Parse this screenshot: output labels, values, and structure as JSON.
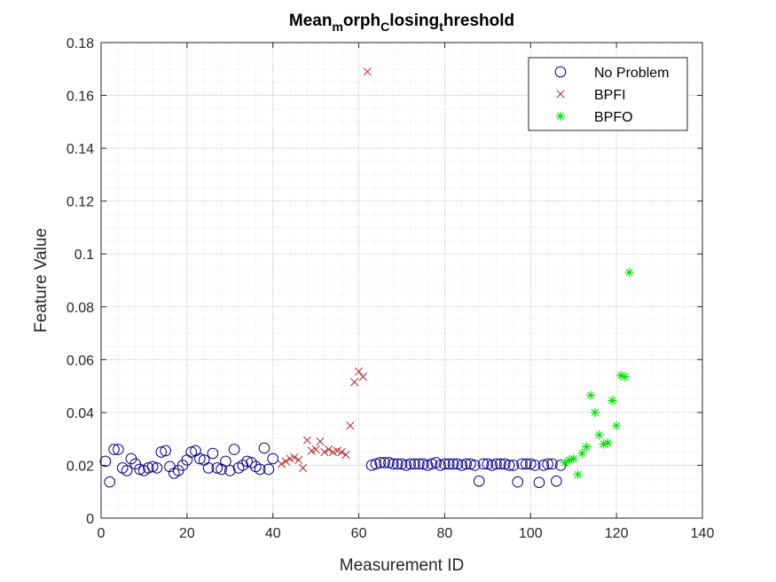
{
  "chart_data": {
    "type": "scatter",
    "title": {
      "parts": [
        {
          "text": "Mean",
          "sub": false
        },
        {
          "text": "m",
          "sub": true
        },
        {
          "text": "orph",
          "sub": false
        },
        {
          "text": "C",
          "sub": true
        },
        {
          "text": "losing",
          "sub": false
        },
        {
          "text": "t",
          "sub": true
        },
        {
          "text": "hreshold",
          "sub": false
        }
      ]
    },
    "xlabel": "Measurement ID",
    "ylabel": "Feature Value",
    "xlim": [
      0,
      140
    ],
    "ylim": [
      0,
      0.18
    ],
    "xticks": [
      0,
      20,
      40,
      60,
      80,
      100,
      120,
      140
    ],
    "yticks": [
      0,
      0.02,
      0.04,
      0.06,
      0.08,
      0.1,
      0.12,
      0.14,
      0.16,
      0.18
    ],
    "ytick_labels": [
      "0",
      "0.02",
      "0.04",
      "0.06",
      "0.08",
      "0.1",
      "0.12",
      "0.14",
      "0.16",
      "0.18"
    ],
    "grid": true,
    "minor_grid": true,
    "legend_position": "top-right",
    "series": [
      {
        "name": "No Problem",
        "marker": "circle",
        "color": "#00008b",
        "x": [
          1,
          2,
          3,
          4,
          5,
          6,
          7,
          8,
          9,
          10,
          11,
          12,
          13,
          14,
          15,
          16,
          17,
          18,
          19,
          20,
          21,
          22,
          23,
          24,
          25,
          26,
          27,
          28,
          29,
          30,
          31,
          32,
          33,
          34,
          35,
          36,
          37,
          38,
          39,
          40,
          63,
          64,
          65,
          66,
          67,
          68,
          69,
          70,
          71,
          72,
          73,
          74,
          75,
          76,
          77,
          78,
          79,
          80,
          81,
          82,
          83,
          84,
          85,
          86,
          87,
          88,
          89,
          90,
          91,
          92,
          93,
          94,
          95,
          96,
          97,
          98,
          99,
          100,
          101,
          102,
          103,
          104,
          105,
          106,
          107
        ],
        "y": [
          0.0215,
          0.0137,
          0.026,
          0.026,
          0.019,
          0.018,
          0.0225,
          0.0205,
          0.0185,
          0.018,
          0.019,
          0.0195,
          0.019,
          0.025,
          0.0255,
          0.0195,
          0.017,
          0.018,
          0.02,
          0.022,
          0.025,
          0.0255,
          0.0225,
          0.022,
          0.019,
          0.0245,
          0.019,
          0.0185,
          0.0215,
          0.018,
          0.026,
          0.019,
          0.02,
          0.0215,
          0.021,
          0.0195,
          0.0185,
          0.0265,
          0.0185,
          0.0225,
          0.02,
          0.0205,
          0.021,
          0.021,
          0.021,
          0.0205,
          0.0205,
          0.0205,
          0.02,
          0.0205,
          0.0205,
          0.0205,
          0.0205,
          0.02,
          0.0205,
          0.021,
          0.02,
          0.0205,
          0.0205,
          0.0205,
          0.0205,
          0.02,
          0.0205,
          0.0205,
          0.02,
          0.014,
          0.0205,
          0.0205,
          0.02,
          0.0205,
          0.0205,
          0.0205,
          0.02,
          0.02,
          0.0137,
          0.0205,
          0.0205,
          0.0205,
          0.02,
          0.0135,
          0.02,
          0.0205,
          0.0205,
          0.014,
          0.02
        ]
      },
      {
        "name": "BPFI",
        "marker": "x",
        "color": "#b22222",
        "x": [
          42,
          43,
          44,
          45,
          46,
          47,
          48,
          49,
          50,
          51,
          52,
          53,
          54,
          55,
          56,
          57,
          58,
          59,
          60,
          61,
          62
        ],
        "y": [
          0.0205,
          0.0215,
          0.0225,
          0.023,
          0.022,
          0.019,
          0.0295,
          0.0255,
          0.026,
          0.029,
          0.025,
          0.026,
          0.025,
          0.0255,
          0.025,
          0.024,
          0.035,
          0.0515,
          0.0555,
          0.0535,
          0.169
        ]
      },
      {
        "name": "BPFO",
        "marker": "asterisk",
        "color": "#00e000",
        "x": [
          108,
          109,
          110,
          111,
          112,
          113,
          114,
          115,
          116,
          117,
          118,
          119,
          120,
          121,
          122,
          123
        ],
        "y": [
          0.021,
          0.022,
          0.0225,
          0.0165,
          0.0245,
          0.027,
          0.0465,
          0.04,
          0.0315,
          0.028,
          0.0285,
          0.0445,
          0.035,
          0.054,
          0.0535,
          0.093
        ]
      }
    ]
  }
}
